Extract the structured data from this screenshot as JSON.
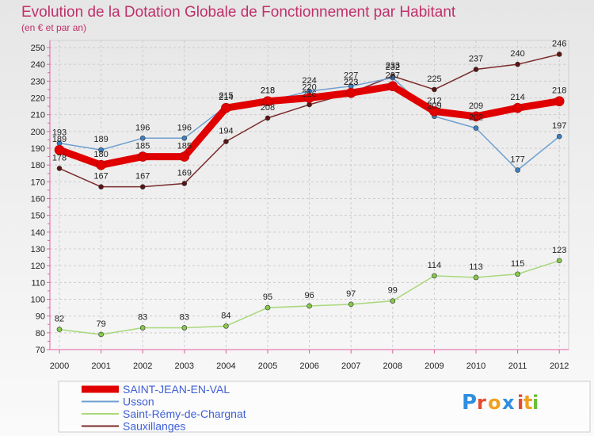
{
  "chart_data": {
    "type": "line",
    "title": "Evolution de la Dotation Globale de Fonctionnement par Habitant",
    "subtitle": "(en € et par an)",
    "x": [
      "2000",
      "2001",
      "2002",
      "2003",
      "2004",
      "2005",
      "2006",
      "2007",
      "2008",
      "2009",
      "2010",
      "2011",
      "2012"
    ],
    "ylim": [
      70,
      250
    ],
    "yticks": [
      70,
      80,
      90,
      100,
      110,
      120,
      130,
      140,
      150,
      160,
      170,
      180,
      190,
      200,
      210,
      220,
      230,
      240,
      250
    ],
    "grid": true,
    "series": [
      {
        "name": "SAINT-JEAN-EN-VAL",
        "color": "#e00000",
        "marker": "#e00000",
        "width": 9,
        "values": [
          189,
          180,
          185,
          185,
          214,
          218,
          220,
          223,
          227,
          212,
          209,
          214,
          218
        ]
      },
      {
        "name": "Usson",
        "color": "#6f9fd0",
        "marker": "#3c7fc4",
        "width": 1.5,
        "values": [
          193,
          189,
          196,
          196,
          215,
          218,
          224,
          227,
          232,
          209,
          202,
          177,
          197
        ]
      },
      {
        "name": "Saint-Rémy-de-Chargnat",
        "color": "#a8d87a",
        "marker": "#86c94a",
        "width": 1.5,
        "values": [
          82,
          79,
          83,
          83,
          84,
          95,
          96,
          97,
          99,
          114,
          113,
          115,
          123
        ]
      },
      {
        "name": "Sauxillanges",
        "color": "#7a2a2a",
        "marker": "#5a1414",
        "width": 1.5,
        "values": [
          178,
          167,
          167,
          169,
          194,
          208,
          216,
          223,
          233,
          225,
          237,
          240,
          246
        ]
      }
    ],
    "legend_position": "bottom-left"
  },
  "brand": {
    "letters": [
      "P",
      "r",
      "o",
      "x",
      "i",
      "t",
      "i"
    ],
    "colors": [
      "#2f8ee0",
      "#e64a2e",
      "#f0a020",
      "#2f8ee0",
      "#e64a2e",
      "#f0a020",
      "#6bbf3a"
    ]
  }
}
